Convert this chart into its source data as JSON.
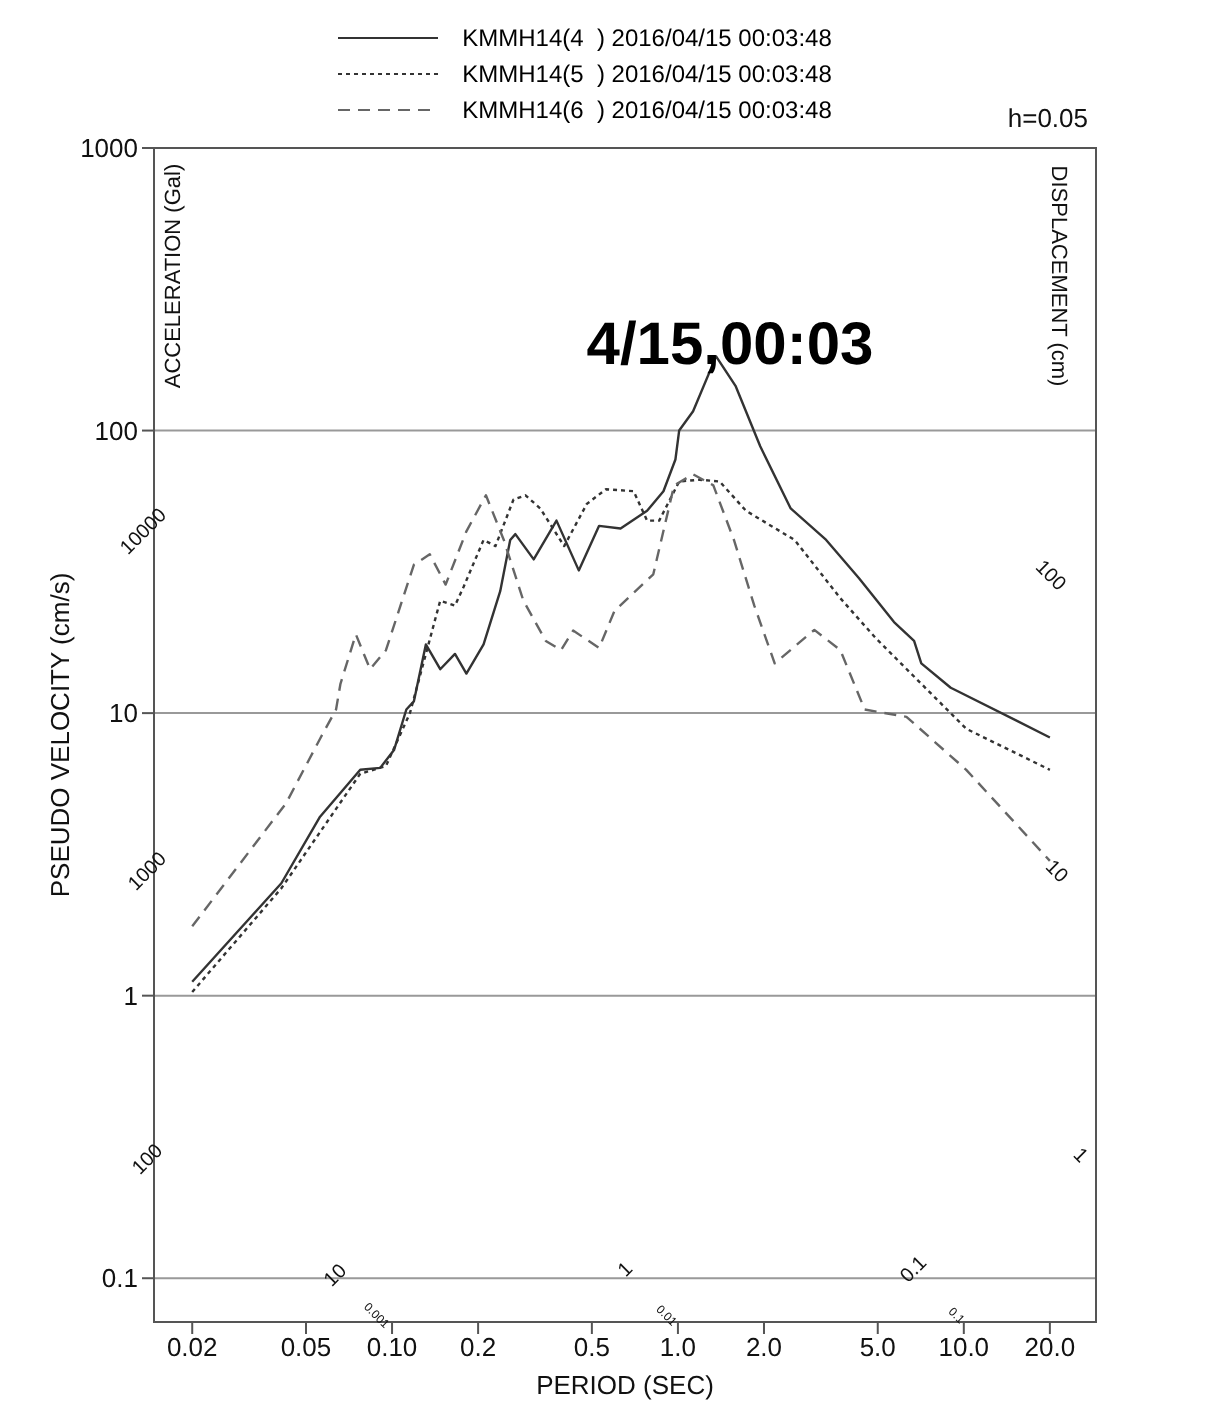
{
  "chart_data": {
    "type": "line",
    "title": "4/15,00:03",
    "xlabel": "PERIOD (SEC)",
    "ylabel": "PSEUDO VELOCITY (cm/s)",
    "log": "xy",
    "grid": "y",
    "legend": "top",
    "xlim": [
      0.0147,
      29
    ],
    "ylim": [
      0.07,
      1000
    ],
    "xticks": [
      0.02,
      0.05,
      {
        "value": 0.1,
        "label": "0.10"
      },
      0.2,
      0.5,
      {
        "value": 1,
        "label": "1.0"
      },
      {
        "value": 2,
        "label": "2.0"
      },
      {
        "value": 5,
        "label": "5.0"
      },
      {
        "value": 10,
        "label": "10.0"
      },
      {
        "value": 20,
        "label": "20.0"
      }
    ],
    "yticks": [
      0.1,
      1,
      10,
      100,
      1000
    ],
    "annotations": [
      "ACCELERATION (Gal)",
      "DISPLACEMENT (cm)",
      "h=0.05",
      "10000",
      "1000",
      "100",
      "10",
      "1",
      "0.1",
      "0.001",
      "0.01",
      "0.1",
      "100",
      "10",
      "1"
    ],
    "series": [
      {
        "name": "KMMH14(4  ) 2016/04/15 00:03:48",
        "color": "#333333",
        "line_style": "solid",
        "x": [
          0.02,
          0.041,
          0.056,
          0.0774,
          0.0909,
          0.1016,
          0.1122,
          0.1192,
          0.1313,
          0.1474,
          0.166,
          0.182,
          0.209,
          0.239,
          0.259,
          0.27,
          0.313,
          0.376,
          0.45,
          0.53,
          0.63,
          0.78,
          0.89,
          0.98,
          1.01,
          1.13,
          1.36,
          1.59,
          1.94,
          2.48,
          3.3,
          4.3,
          5.7,
          6.7,
          7.1,
          9.0,
          9.3,
          20
        ],
        "values": [
          1.12,
          2.5,
          4.3,
          6.3,
          6.4,
          7.4,
          10.3,
          11,
          17.5,
          14.3,
          16.2,
          13.8,
          17.5,
          27,
          41,
          43,
          35,
          48,
          32,
          46,
          45,
          52,
          61,
          79,
          100,
          117,
          183,
          144,
          88,
          53,
          41,
          30,
          21,
          18,
          15,
          12.3,
          12.1,
          8.2
        ]
      },
      {
        "name": "KMMH14(5  ) 2016/04/15 00:03:48",
        "color": "#333333",
        "line_style": "dotted",
        "x": [
          0.02,
          0.041,
          0.0774,
          0.0952,
          0.1155,
          0.1474,
          0.166,
          0.178,
          0.209,
          0.23,
          0.266,
          0.293,
          0.33,
          0.4,
          0.48,
          0.56,
          0.7,
          0.78,
          0.86,
          1.01,
          1.19,
          1.4,
          1.73,
          2.56,
          3.7,
          4.9,
          7.1,
          10.2,
          20
        ],
        "values": [
          1.03,
          2.4,
          6.1,
          6.5,
          10,
          25,
          24,
          28,
          41,
          39,
          57,
          59,
          53,
          39,
          55,
          62,
          61,
          48,
          48,
          66,
          67,
          66,
          52,
          41,
          25.5,
          18.5,
          12.7,
          8.8,
          6.3
        ]
      },
      {
        "name": "KMMH14(6  ) 2016/04/15 00:03:48",
        "color": "#666666",
        "line_style": "dashed",
        "x": [
          0.02,
          0.0426,
          0.0563,
          0.0637,
          0.066,
          0.0747,
          0.0838,
          0.0952,
          0.1192,
          0.1355,
          0.154,
          0.182,
          0.213,
          0.246,
          0.288,
          0.345,
          0.39,
          0.43,
          0.53,
          0.6,
          0.82,
          0.97,
          1.13,
          1.33,
          1.57,
          1.85,
          2.18,
          3.0,
          3.7,
          4.5,
          6.3,
          10.2,
          20
        ],
        "values": [
          1.76,
          4.8,
          8.2,
          10.3,
          12.7,
          19,
          14.3,
          16.7,
          33.5,
          36.5,
          28.5,
          44,
          59,
          41,
          25,
          18,
          16.7,
          19.6,
          17,
          23,
          31,
          64,
          70,
          64,
          41,
          24,
          15,
          19.7,
          16.7,
          10.3,
          9.7,
          6.3,
          3.0
        ]
      }
    ]
  }
}
